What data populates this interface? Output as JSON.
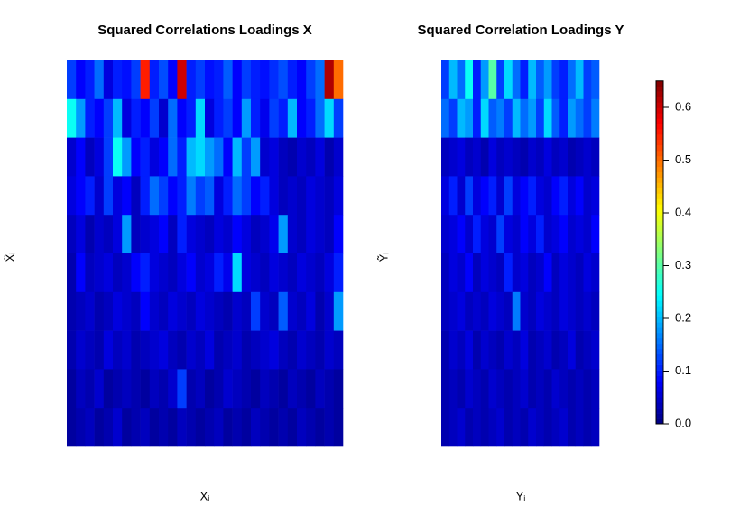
{
  "chart_data": [
    {
      "type": "heatmap",
      "title": "Squared Correlations Loadings X",
      "xlabel": "Xᵢ",
      "ylabel": "X̃ᵢ",
      "values": [
        [
          0.12,
          0.08,
          0.1,
          0.15,
          0.06,
          0.1,
          0.09,
          0.12,
          0.55,
          0.1,
          0.13,
          0.08,
          0.6,
          0.1,
          0.12,
          0.09,
          0.1,
          0.14,
          0.08,
          0.12,
          0.1,
          0.09,
          0.11,
          0.13,
          0.1,
          0.08,
          0.12,
          0.15,
          0.62,
          0.5
        ],
        [
          0.25,
          0.18,
          0.1,
          0.08,
          0.12,
          0.2,
          0.06,
          0.1,
          0.08,
          0.12,
          0.05,
          0.15,
          0.08,
          0.1,
          0.22,
          0.06,
          0.1,
          0.12,
          0.08,
          0.18,
          0.1,
          0.07,
          0.12,
          0.1,
          0.2,
          0.08,
          0.1,
          0.15,
          0.22,
          0.12
        ],
        [
          0.05,
          0.08,
          0.04,
          0.06,
          0.12,
          0.25,
          0.18,
          0.08,
          0.1,
          0.06,
          0.08,
          0.15,
          0.1,
          0.2,
          0.22,
          0.18,
          0.15,
          0.08,
          0.2,
          0.12,
          0.18,
          0.05,
          0.06,
          0.04,
          0.03,
          0.05,
          0.04,
          0.06,
          0.03,
          0.05
        ],
        [
          0.06,
          0.08,
          0.1,
          0.05,
          0.12,
          0.06,
          0.08,
          0.04,
          0.1,
          0.15,
          0.12,
          0.08,
          0.1,
          0.16,
          0.12,
          0.14,
          0.06,
          0.1,
          0.15,
          0.12,
          0.08,
          0.1,
          0.06,
          0.04,
          0.05,
          0.04,
          0.06,
          0.05,
          0.04,
          0.06
        ],
        [
          0.04,
          0.06,
          0.03,
          0.05,
          0.04,
          0.06,
          0.18,
          0.04,
          0.05,
          0.06,
          0.08,
          0.04,
          0.1,
          0.06,
          0.05,
          0.04,
          0.06,
          0.05,
          0.08,
          0.06,
          0.04,
          0.05,
          0.07,
          0.18,
          0.05,
          0.04,
          0.06,
          0.05,
          0.04,
          0.08
        ],
        [
          0.03,
          0.08,
          0.04,
          0.05,
          0.06,
          0.04,
          0.05,
          0.08,
          0.1,
          0.06,
          0.05,
          0.04,
          0.06,
          0.08,
          0.05,
          0.06,
          0.1,
          0.07,
          0.22,
          0.06,
          0.05,
          0.04,
          0.06,
          0.05,
          0.04,
          0.06,
          0.05,
          0.04,
          0.06,
          0.1
        ],
        [
          0.03,
          0.04,
          0.05,
          0.03,
          0.04,
          0.06,
          0.05,
          0.04,
          0.08,
          0.05,
          0.04,
          0.06,
          0.05,
          0.04,
          0.06,
          0.05,
          0.04,
          0.03,
          0.05,
          0.04,
          0.12,
          0.05,
          0.04,
          0.14,
          0.05,
          0.04,
          0.06,
          0.03,
          0.05,
          0.18
        ],
        [
          0.03,
          0.05,
          0.04,
          0.03,
          0.06,
          0.04,
          0.05,
          0.03,
          0.04,
          0.05,
          0.06,
          0.04,
          0.03,
          0.05,
          0.04,
          0.06,
          0.03,
          0.04,
          0.05,
          0.03,
          0.04,
          0.05,
          0.06,
          0.04,
          0.03,
          0.05,
          0.04,
          0.03,
          0.05,
          0.04
        ],
        [
          0.02,
          0.04,
          0.03,
          0.05,
          0.02,
          0.03,
          0.04,
          0.03,
          0.02,
          0.04,
          0.03,
          0.05,
          0.12,
          0.03,
          0.04,
          0.02,
          0.03,
          0.05,
          0.04,
          0.03,
          0.02,
          0.04,
          0.03,
          0.02,
          0.04,
          0.03,
          0.02,
          0.04,
          0.03,
          0.02
        ],
        [
          0.02,
          0.03,
          0.04,
          0.02,
          0.03,
          0.05,
          0.02,
          0.03,
          0.04,
          0.02,
          0.03,
          0.02,
          0.04,
          0.03,
          0.02,
          0.03,
          0.04,
          0.02,
          0.03,
          0.02,
          0.04,
          0.03,
          0.02,
          0.03,
          0.02,
          0.04,
          0.03,
          0.02,
          0.03,
          0.02
        ]
      ]
    },
    {
      "type": "heatmap",
      "title": "Squared Correlation Loadings Y",
      "xlabel": "Yᵢ",
      "ylabel": "Ỹᵢ",
      "values": [
        [
          0.12,
          0.2,
          0.15,
          0.25,
          0.1,
          0.18,
          0.3,
          0.12,
          0.22,
          0.15,
          0.1,
          0.2,
          0.14,
          0.18,
          0.12,
          0.1,
          0.15,
          0.2,
          0.12,
          0.14
        ],
        [
          0.15,
          0.12,
          0.2,
          0.18,
          0.1,
          0.22,
          0.14,
          0.16,
          0.12,
          0.2,
          0.15,
          0.18,
          0.12,
          0.22,
          0.14,
          0.1,
          0.18,
          0.15,
          0.12,
          0.16
        ],
        [
          0.04,
          0.05,
          0.06,
          0.04,
          0.05,
          0.03,
          0.06,
          0.04,
          0.05,
          0.04,
          0.03,
          0.05,
          0.04,
          0.06,
          0.04,
          0.05,
          0.03,
          0.04,
          0.05,
          0.04
        ],
        [
          0.06,
          0.1,
          0.05,
          0.12,
          0.06,
          0.08,
          0.1,
          0.05,
          0.12,
          0.06,
          0.08,
          0.1,
          0.06,
          0.05,
          0.08,
          0.1,
          0.06,
          0.08,
          0.05,
          0.06
        ],
        [
          0.05,
          0.06,
          0.08,
          0.05,
          0.1,
          0.06,
          0.05,
          0.12,
          0.06,
          0.05,
          0.08,
          0.06,
          0.1,
          0.05,
          0.06,
          0.08,
          0.05,
          0.06,
          0.05,
          0.08
        ],
        [
          0.04,
          0.06,
          0.05,
          0.08,
          0.04,
          0.06,
          0.05,
          0.04,
          0.1,
          0.05,
          0.06,
          0.04,
          0.05,
          0.08,
          0.04,
          0.06,
          0.05,
          0.04,
          0.06,
          0.05
        ],
        [
          0.04,
          0.05,
          0.06,
          0.04,
          0.05,
          0.04,
          0.06,
          0.05,
          0.04,
          0.16,
          0.05,
          0.04,
          0.06,
          0.05,
          0.04,
          0.06,
          0.05,
          0.04,
          0.05,
          0.04
        ],
        [
          0.03,
          0.05,
          0.04,
          0.06,
          0.03,
          0.05,
          0.04,
          0.03,
          0.05,
          0.04,
          0.06,
          0.03,
          0.04,
          0.05,
          0.03,
          0.04,
          0.06,
          0.03,
          0.04,
          0.05
        ],
        [
          0.03,
          0.04,
          0.03,
          0.05,
          0.04,
          0.03,
          0.05,
          0.04,
          0.03,
          0.04,
          0.05,
          0.03,
          0.04,
          0.03,
          0.05,
          0.04,
          0.03,
          0.04,
          0.03,
          0.04
        ],
        [
          0.03,
          0.04,
          0.05,
          0.03,
          0.04,
          0.03,
          0.04,
          0.05,
          0.03,
          0.04,
          0.03,
          0.05,
          0.04,
          0.03,
          0.04,
          0.05,
          0.03,
          0.04,
          0.03,
          0.04
        ]
      ]
    },
    {
      "type": "colorbar",
      "zlim": [
        0,
        0.65
      ],
      "zticks": [
        {
          "value": 0,
          "label": "0.0"
        },
        0.1,
        0.2,
        0.3,
        0.4,
        0.5,
        0.6
      ]
    }
  ]
}
